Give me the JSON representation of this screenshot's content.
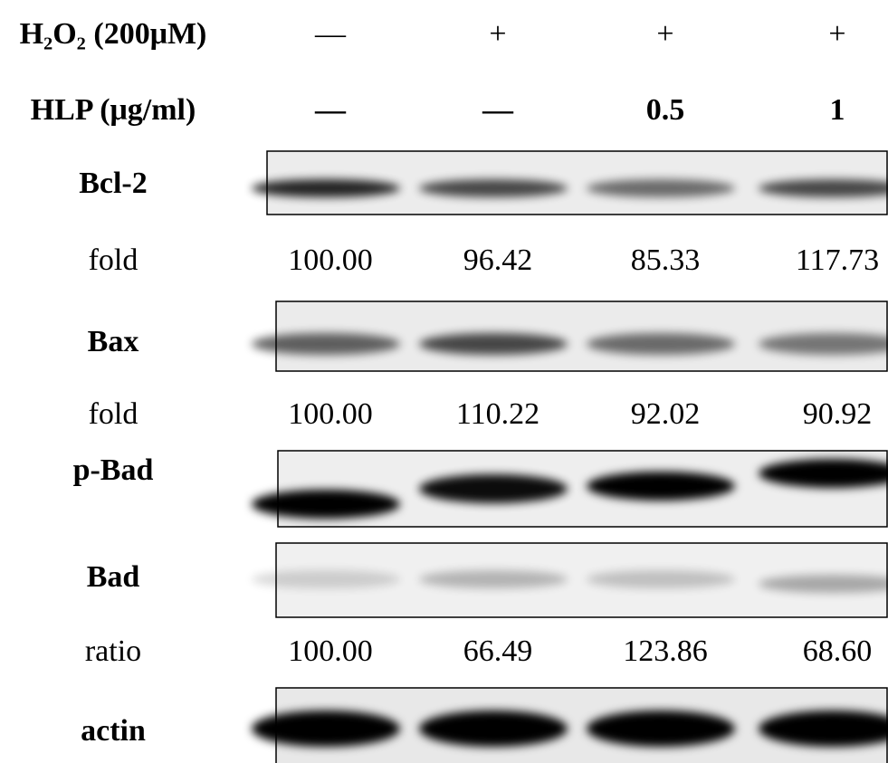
{
  "treatments": [
    {
      "label": "H₂O₂ (200μM)",
      "lanes": [
        "—",
        "+",
        "+",
        "+"
      ]
    },
    {
      "label": "HLP (μg/ml)",
      "lanes": [
        "—",
        "—",
        "0.5",
        "1"
      ]
    }
  ],
  "blots": [
    {
      "label": "Bcl-2"
    },
    {
      "label": "Bax"
    },
    {
      "label": "p-Bad"
    },
    {
      "label": "Bad"
    },
    {
      "label": "actin"
    }
  ],
  "quantifications": [
    {
      "label": "fold",
      "values": [
        "100.00",
        "96.42",
        "85.33",
        "117.73"
      ]
    },
    {
      "label": "fold",
      "values": [
        "100.00",
        "110.22",
        "92.02",
        "90.92"
      ]
    },
    {
      "label": "ratio",
      "values": [
        "100.00",
        "66.49",
        "123.86",
        "68.60"
      ]
    }
  ]
}
